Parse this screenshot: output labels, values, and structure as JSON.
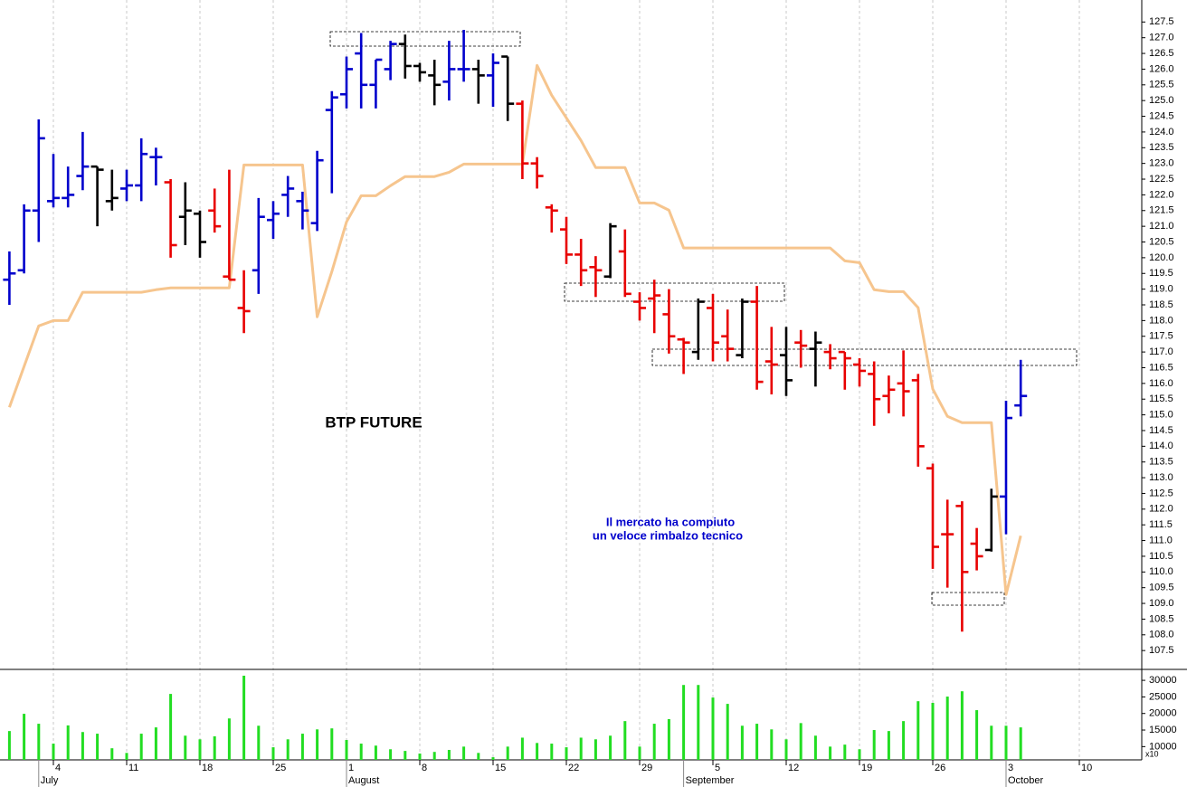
{
  "chart_data": [
    {
      "type": "ohlc",
      "annotations": [
        "BTP FUTURE",
        "Il mercato ha compiuto",
        "un veloce rimbalzo tecnico"
      ],
      "open": [
        119.3,
        119.6,
        121.5,
        121.8,
        121.9,
        122.6,
        122.9,
        121.8,
        122.2,
        122.3,
        123.2,
        122.4,
        121.3,
        121.4,
        121.5,
        119.4,
        118.4,
        119.6,
        121.2,
        122.0,
        121.8,
        121.1,
        124.7,
        125.2,
        126.5,
        125.5,
        126.0,
        126.8,
        126.1,
        125.8,
        125.6,
        126.0,
        126.0,
        125.8,
        126.4,
        124.9,
        123.0,
        121.6,
        120.9,
        120.1,
        119.7,
        119.4,
        120.2,
        118.6,
        118.7,
        118.2,
        117.4,
        117.0,
        118.4,
        117.5,
        116.9,
        118.6,
        116.7,
        116.9,
        117.3,
        117.1,
        117.0,
        117.0,
        116.6,
        116.3,
        115.6,
        116.0,
        116.1,
        113.3,
        111.2,
        112.1,
        110.9,
        110.7,
        112.4,
        115.3,
        null,
        null,
        null,
        null
      ],
      "high": [
        120.2,
        121.7,
        124.4,
        123.3,
        122.9,
        124.0,
        122.9,
        122.8,
        122.8,
        123.8,
        123.5,
        122.5,
        122.4,
        121.5,
        122.2,
        122.8,
        119.6,
        121.9,
        121.8,
        122.6,
        122.1,
        123.4,
        125.3,
        126.4,
        127.15,
        126.3,
        126.9,
        127.1,
        126.2,
        126.3,
        126.9,
        127.25,
        126.3,
        126.5,
        126.4,
        125.0,
        123.2,
        121.7,
        121.3,
        120.6,
        120.05,
        121.1,
        120.9,
        118.9,
        119.3,
        119.0,
        117.45,
        118.7,
        118.85,
        118.35,
        118.7,
        119.1,
        117.8,
        117.8,
        117.7,
        117.65,
        117.25,
        117.0,
        116.8,
        116.7,
        116.25,
        117.05,
        116.3,
        113.45,
        112.3,
        112.25,
        111.4,
        112.65,
        115.45,
        116.75,
        null,
        null,
        null,
        null
      ],
      "low": [
        118.5,
        119.5,
        120.5,
        121.6,
        121.6,
        122.15,
        121.0,
        121.5,
        121.8,
        121.8,
        122.3,
        120.0,
        120.4,
        120.0,
        120.8,
        119.3,
        117.6,
        118.85,
        120.6,
        121.3,
        120.9,
        120.85,
        122.05,
        124.75,
        124.75,
        124.75,
        125.65,
        125.7,
        125.6,
        124.85,
        125.0,
        125.6,
        124.9,
        124.8,
        124.35,
        122.5,
        122.2,
        120.8,
        119.8,
        119.1,
        118.75,
        119.35,
        118.75,
        118.0,
        117.6,
        116.95,
        116.3,
        116.75,
        116.7,
        116.7,
        116.8,
        115.8,
        115.65,
        115.6,
        116.5,
        115.9,
        116.45,
        115.8,
        115.9,
        114.65,
        115.05,
        114.95,
        113.35,
        110.1,
        109.5,
        108.1,
        110.05,
        110.65,
        111.2,
        114.95,
        null,
        null,
        null,
        null
      ],
      "close": [
        119.5,
        121.5,
        123.8,
        121.9,
        122.0,
        122.9,
        122.8,
        121.9,
        122.3,
        123.3,
        123.2,
        120.4,
        121.5,
        120.5,
        121.0,
        119.3,
        118.3,
        121.3,
        121.4,
        122.2,
        121.5,
        123.1,
        125.1,
        126.0,
        125.5,
        126.3,
        126.8,
        126.1,
        125.9,
        125.5,
        126.0,
        126.0,
        125.8,
        126.2,
        124.9,
        123.0,
        122.6,
        121.5,
        120.1,
        119.6,
        119.6,
        121.0,
        118.85,
        118.4,
        118.8,
        117.5,
        117.3,
        118.6,
        117.3,
        117.1,
        118.6,
        116.05,
        116.6,
        116.1,
        117.2,
        117.3,
        116.8,
        116.8,
        116.4,
        115.5,
        115.8,
        115.75,
        114.0,
        110.8,
        111.2,
        110.0,
        110.5,
        112.4,
        114.9,
        115.6,
        null,
        null,
        null,
        null
      ],
      "colors": [
        "#0000cc",
        "#0000cc",
        "#0000cc",
        "#0000cc",
        "#0000cc",
        "#0000cc",
        "#000000",
        "#000000",
        "#0000cc",
        "#0000cc",
        "#0000cc",
        "#e80000",
        "#000000",
        "#000000",
        "#e80000",
        "#e80000",
        "#e80000",
        "#0000cc",
        "#0000cc",
        "#0000cc",
        "#0000cc",
        "#0000cc",
        "#0000cc",
        "#0000cc",
        "#0000cc",
        "#0000cc",
        "#0000cc",
        "#000000",
        "#000000",
        "#000000",
        "#0000cc",
        "#0000cc",
        "#000000",
        "#0000cc",
        "#000000",
        "#e80000",
        "#e80000",
        "#e80000",
        "#e80000",
        "#e80000",
        "#e80000",
        "#000000",
        "#e80000",
        "#e80000",
        "#e80000",
        "#e80000",
        "#e80000",
        "#000000",
        "#e80000",
        "#e80000",
        "#000000",
        "#e80000",
        "#e80000",
        "#000000",
        "#e80000",
        "#000000",
        "#e80000",
        "#e80000",
        "#e80000",
        "#e80000",
        "#e80000",
        "#e80000",
        "#e80000",
        "#e80000",
        "#e80000",
        "#e80000",
        "#e80000",
        "#000000",
        "#0000cc",
        "#0000cc",
        null,
        null,
        null,
        null
      ],
      "line": {
        "color": "#f6c58e",
        "values": [
          115.24,
          116.54,
          117.83,
          118.0,
          118.0,
          118.9,
          118.9,
          118.9,
          118.9,
          118.9,
          118.98,
          119.04,
          119.04,
          119.04,
          119.04,
          119.04,
          122.95,
          122.95,
          122.95,
          122.95,
          122.95,
          118.12,
          119.56,
          121.14,
          121.97,
          121.97,
          122.29,
          122.58,
          122.58,
          122.58,
          122.72,
          122.98,
          122.98,
          122.98,
          122.98,
          122.98,
          126.12,
          125.17,
          124.45,
          123.73,
          122.87,
          122.87,
          122.87,
          121.74,
          121.74,
          121.51,
          120.31,
          120.31,
          120.31,
          120.31,
          120.31,
          120.31,
          120.31,
          120.31,
          120.31,
          120.31,
          120.31,
          119.9,
          119.84,
          118.98,
          118.92,
          118.92,
          118.41,
          115.82,
          114.95,
          114.75,
          114.75,
          114.75,
          109.28,
          111.15,
          null,
          null,
          null,
          null
        ]
      },
      "ylim": [
        106.9,
        128.2
      ],
      "yticks": [
        107.5,
        {
          "value": 108,
          "label": "108.0"
        },
        108.5,
        {
          "value": 109,
          "label": "109.0"
        },
        109.5,
        {
          "value": 110,
          "label": "110.0"
        },
        110.5,
        {
          "value": 111,
          "label": "111.0"
        },
        111.5,
        {
          "value": 112,
          "label": "112.0"
        },
        112.5,
        {
          "value": 113,
          "label": "113.0"
        },
        113.5,
        {
          "value": 114,
          "label": "114.0"
        },
        114.5,
        {
          "value": 115,
          "label": "115.0"
        },
        115.5,
        {
          "value": 116,
          "label": "116.0"
        },
        116.5,
        {
          "value": 117,
          "label": "117.0"
        },
        117.5,
        {
          "value": 118,
          "label": "118.0"
        },
        118.5,
        {
          "value": 119,
          "label": "119.0"
        },
        119.5,
        {
          "value": 120,
          "label": "120.0"
        },
        120.5,
        {
          "value": 121,
          "label": "121.0"
        },
        121.5,
        {
          "value": 122,
          "label": "122.0"
        },
        122.5,
        {
          "value": 123,
          "label": "123.0"
        },
        123.5,
        {
          "value": 124,
          "label": "124.0"
        },
        124.5,
        {
          "value": 125,
          "label": "125.0"
        },
        125.5,
        {
          "value": 126,
          "label": "126.0"
        },
        126.5,
        {
          "value": 127,
          "label": "127.0"
        },
        127.5
      ],
      "grid": true
    },
    {
      "type": "bar",
      "categories": [
        null,
        null,
        null,
        "4",
        null,
        null,
        null,
        null,
        "11",
        null,
        null,
        null,
        null,
        "18",
        null,
        null,
        null,
        null,
        "25",
        null,
        null,
        null,
        null,
        "1",
        null,
        null,
        null,
        null,
        "8",
        null,
        null,
        null,
        null,
        "15",
        null,
        null,
        null,
        null,
        "22",
        null,
        null,
        null,
        null,
        "29",
        null,
        null,
        null,
        null,
        "5",
        null,
        null,
        null,
        null,
        "12",
        null,
        null,
        null,
        null,
        "19",
        null,
        null,
        null,
        null,
        "26",
        null,
        null,
        null,
        null,
        "3",
        null,
        null,
        null,
        null,
        "10"
      ],
      "month_labels": [
        null,
        null,
        "July",
        null,
        null,
        null,
        null,
        null,
        null,
        null,
        null,
        null,
        null,
        null,
        null,
        null,
        null,
        null,
        null,
        null,
        null,
        null,
        null,
        "August",
        null,
        null,
        null,
        null,
        null,
        null,
        null,
        null,
        null,
        null,
        null,
        null,
        null,
        null,
        null,
        null,
        null,
        null,
        null,
        null,
        null,
        null,
        "September",
        null,
        null,
        null,
        null,
        null,
        null,
        null,
        null,
        null,
        null,
        null,
        null,
        null,
        null,
        null,
        null,
        null,
        null,
        null,
        null,
        null,
        "October",
        null,
        null,
        null,
        null,
        null
      ],
      "values": [
        14700,
        19900,
        16900,
        10900,
        16400,
        14400,
        13900,
        9500,
        8100,
        13900,
        15800,
        25900,
        13300,
        12200,
        13100,
        18500,
        31400,
        16300,
        9800,
        12200,
        13900,
        15200,
        15500,
        12000,
        10900,
        10300,
        9200,
        8700,
        7900,
        8400,
        9000,
        10000,
        8100,
        6800,
        10000,
        12700,
        11100,
        10900,
        9800,
        12700,
        12200,
        13300,
        17700,
        10000,
        16900,
        18300,
        28600,
        28600,
        24800,
        22900,
        16300,
        16900,
        15200,
        12200,
        17100,
        13300,
        10000,
        10600,
        9200,
        15000,
        14700,
        17700,
        23700,
        23200,
        25100,
        26700,
        21000,
        16300,
        16300,
        15800,
        null,
        null,
        null,
        null
      ],
      "color": "#22dd22",
      "ylim": [
        6000,
        33300
      ],
      "yticks": [
        10000,
        15000,
        20000,
        25000,
        30000
      ],
      "axis_note": "x10",
      "grid": true
    }
  ]
}
